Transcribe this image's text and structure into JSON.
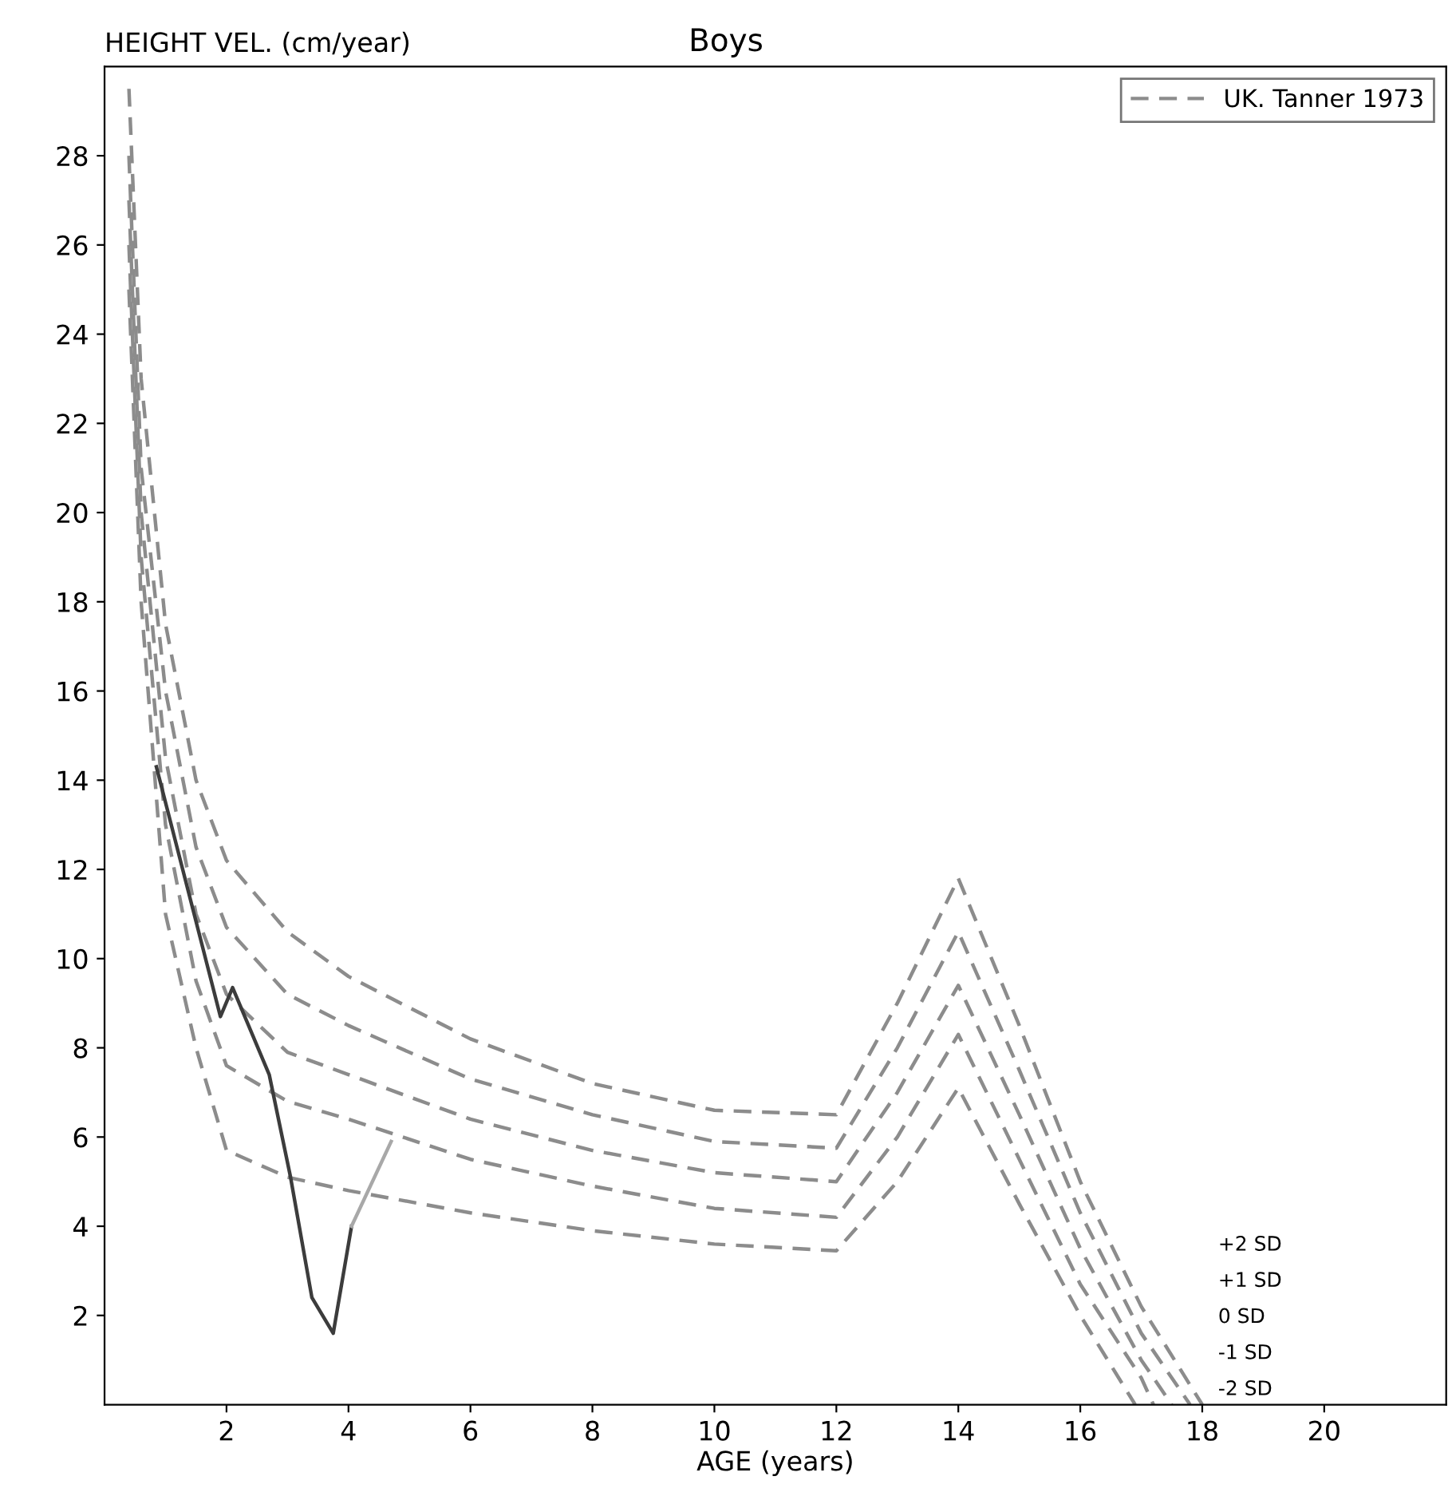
{
  "chart_data": {
    "type": "line",
    "title": "Boys",
    "ylabel": "HEIGHT VEL. (cm/year)",
    "xlabel": "AGE (years)",
    "xlim": [
      0,
      22
    ],
    "xticks": [
      2,
      4,
      6,
      8,
      10,
      12,
      14,
      16,
      18,
      20
    ],
    "ylim": [
      0,
      30
    ],
    "yticks": [
      2,
      4,
      6,
      8,
      10,
      12,
      14,
      16,
      18,
      20,
      22,
      24,
      26,
      28
    ],
    "grid": false,
    "legend": "top right",
    "line_style": "dashed",
    "series": [
      {
        "name": "UK. Tanner 1973",
        "color": "#8c8c8c",
        "x": [
          0.4,
          0.6,
          1,
          1.5,
          2,
          3,
          4,
          6,
          8,
          10,
          12,
          13,
          14,
          15,
          16,
          17,
          18
        ],
        "values": [
          29.5,
          23,
          17.5,
          14,
          12.2,
          10.6,
          9.6,
          8.2,
          7.2,
          6.6,
          6.5,
          9,
          11.8,
          8.5,
          5,
          2.2,
          0
        ]
      },
      {
        "color": "#8c8c8c",
        "x": [
          0.4,
          0.6,
          1,
          1.5,
          2,
          3,
          4,
          6,
          8,
          10,
          12,
          13,
          14,
          15,
          16,
          17,
          17.8
        ],
        "values": [
          28,
          21,
          16,
          12.5,
          10.7,
          9.2,
          8.5,
          7.3,
          6.5,
          5.9,
          5.75,
          8,
          10.6,
          7.5,
          4.3,
          1.6,
          0
        ]
      },
      {
        "color": "#8c8c8c",
        "x": [
          0.4,
          0.6,
          1,
          1.5,
          2,
          3,
          4,
          6,
          8,
          10,
          12,
          13,
          14,
          15,
          16,
          17,
          17.5
        ],
        "values": [
          27,
          20,
          14.5,
          11,
          9.2,
          7.9,
          7.4,
          6.4,
          5.7,
          5.2,
          5.0,
          7,
          9.4,
          6.5,
          3.5,
          1,
          0
        ]
      },
      {
        "color": "#8c8c8c",
        "x": [
          0.4,
          0.6,
          1,
          1.5,
          2,
          3,
          4,
          6,
          8,
          10,
          12,
          13,
          14,
          15,
          16,
          17,
          17.2
        ],
        "values": [
          26,
          19,
          13,
          9.5,
          7.6,
          6.8,
          6.4,
          5.5,
          4.9,
          4.4,
          4.2,
          6,
          8.3,
          5.5,
          2.7,
          0.6,
          0
        ]
      },
      {
        "color": "#8c8c8c",
        "x": [
          0.4,
          0.6,
          1,
          1.5,
          2,
          3,
          4,
          6,
          8,
          10,
          12,
          13,
          14,
          15,
          16,
          16.9
        ],
        "values": [
          25,
          18,
          11,
          8,
          5.7,
          5.1,
          4.8,
          4.3,
          3.9,
          3.6,
          3.45,
          5,
          7.1,
          4.5,
          2,
          0
        ]
      },
      {
        "color": "#3c3c3c",
        "line_style": "solid",
        "x": [
          0.85,
          1.9,
          2.1,
          2.7,
          3.05,
          3.4,
          3.75,
          4.05
        ],
        "values": [
          14.3,
          8.7,
          9.35,
          7.4,
          5.1,
          2.4,
          1.6,
          4.0
        ]
      },
      {
        "color": "#a8a8a8",
        "line_style": "solid",
        "x": [
          4.05,
          4.7
        ],
        "values": [
          4.0,
          5.9
        ]
      }
    ],
    "annotations": [
      "+2 SD",
      "+1 SD",
      "0 SD",
      "-1 SD",
      "-2 SD"
    ]
  }
}
